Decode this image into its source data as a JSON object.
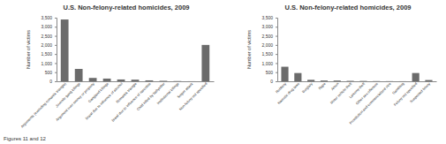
{
  "chart_data": [
    {
      "type": "bar",
      "title": "U.S. Non-felony-related homicides, 2009",
      "y_label": "Number of victims",
      "categories": [
        "Arguments (excluding romantic triangle)",
        "Juvenile gang killings",
        "Argument over money or property",
        "Gangland killings",
        "Brawl due to influence of alcohol",
        "Romantic triangle",
        "Brawl due to influence of narcotics",
        "Child killed by babysitter",
        "Institutional killings",
        "Sniper attack",
        "Non-felony not specified"
      ],
      "values": [
        3400,
        680,
        184,
        148,
        100,
        88,
        50,
        26,
        12,
        2,
        2000
      ],
      "color": "#6b6b6b",
      "grid": false,
      "ylim": [
        0,
        3500
      ],
      "yticks": [
        0,
        500,
        {
          "value": 1000,
          "label": "1,000"
        },
        {
          "value": 1500,
          "label": "1,500"
        },
        {
          "value": 2000,
          "label": "2,000"
        },
        {
          "value": 2500,
          "label": "2,500"
        },
        {
          "value": 3000,
          "label": "3,000"
        },
        {
          "value": 3500,
          "label": "3,500"
        }
      ]
    },
    {
      "type": "bar",
      "title": "U.S. Non-felony-related homicides, 2009",
      "y_label": "Number of victims",
      "categories": [
        "Robbery",
        "Narcotic drug laws",
        "Burglary",
        "Rape",
        "Arson",
        "Motor vehicle theft",
        "Larceny-theft",
        "Other sex offenses",
        "Prostitution and commercialized vice",
        "Gambling",
        "Felony not specified",
        "Suspected felony"
      ],
      "values": [
        799,
        453,
        80,
        42,
        40,
        23,
        18,
        10,
        6,
        3,
        454,
        68
      ],
      "color": "#6b6b6b",
      "grid": false,
      "ylim": [
        0,
        3500
      ],
      "yticks": [
        0,
        500,
        {
          "value": 1000,
          "label": "1,000"
        },
        {
          "value": 1500,
          "label": "1,500"
        },
        {
          "value": 2000,
          "label": "2,000"
        },
        {
          "value": 2500,
          "label": "2,500"
        },
        {
          "value": 3000,
          "label": "3,000"
        },
        {
          "value": 3500,
          "label": "3,500"
        }
      ]
    }
  ],
  "caption": "Figures 11 and 12"
}
